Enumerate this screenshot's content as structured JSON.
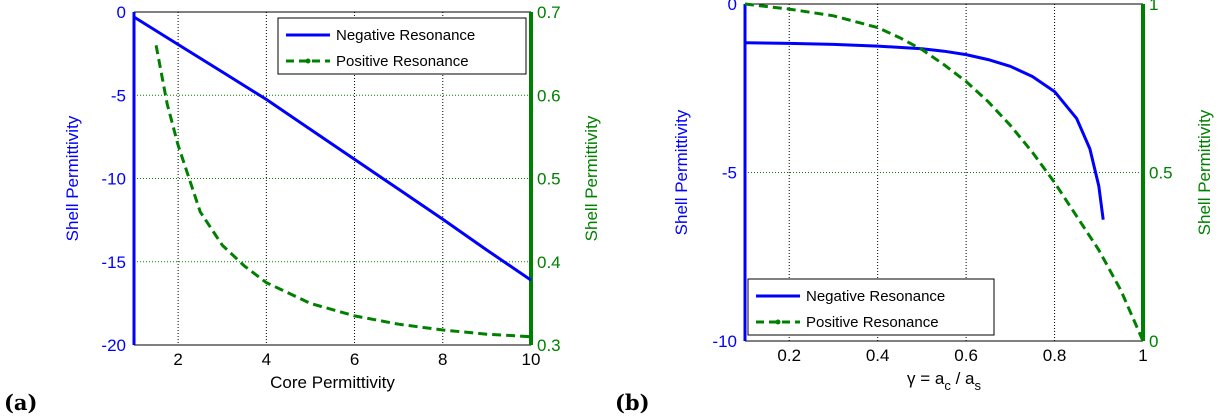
{
  "chart_data": [
    {
      "type": "line",
      "panel_label": "(a)",
      "xlabel": "Core Permittivity",
      "ylabel_left": "Shell Permittivity",
      "ylabel_right": "Shell Permittivity",
      "xlim": [
        1,
        10
      ],
      "ylim_left": [
        -20,
        0
      ],
      "ylim_right": [
        0.3,
        0.7
      ],
      "xticks": [
        2,
        4,
        6,
        8,
        10
      ],
      "yticks_left": [
        0,
        -5,
        -10,
        -15,
        -20
      ],
      "yticks_right": [
        0.7,
        0.6,
        0.5,
        0.4,
        0.3
      ],
      "grid": true,
      "legend_position": "top-right",
      "colors": {
        "left_axis": "#0000ff",
        "right_axis": "#008000",
        "grid_left": "#000000",
        "grid_right": "#008000"
      },
      "series": [
        {
          "name": "Negative Resonance",
          "axis": "left",
          "style": "solid",
          "color": "#0000ff",
          "x": [
            1,
            2,
            3,
            4,
            5,
            6,
            7,
            8,
            9,
            10
          ],
          "y": [
            -0.3,
            -1.95,
            -3.6,
            -5.25,
            -7.05,
            -8.85,
            -10.65,
            -12.45,
            -14.3,
            -16.1
          ]
        },
        {
          "name": "Positive Resonance",
          "axis": "right",
          "style": "dashed",
          "color": "#008000",
          "x": [
            1.5,
            1.75,
            2,
            2.5,
            3,
            3.5,
            4,
            5,
            6,
            7,
            8,
            9,
            10
          ],
          "y": [
            0.66,
            0.59,
            0.54,
            0.46,
            0.42,
            0.395,
            0.375,
            0.35,
            0.335,
            0.325,
            0.318,
            0.313,
            0.31
          ]
        }
      ]
    },
    {
      "type": "line",
      "panel_label": "(b)",
      "xlabel_parts": {
        "base": "γ = a",
        "sub1": "c",
        "mid": " / a",
        "sub2": "s"
      },
      "ylabel_left": "Shell Permittivity",
      "ylabel_right": "Shell Permittivity",
      "xlim": [
        0.1,
        1
      ],
      "ylim_left": [
        -10,
        0
      ],
      "ylim_right": [
        0,
        1
      ],
      "xticks": [
        0.2,
        0.4,
        0.6,
        0.8,
        1
      ],
      "yticks_left": [
        0,
        -5,
        -10
      ],
      "yticks_right": [
        1,
        0.5,
        0
      ],
      "grid": true,
      "legend_position": "bottom-left",
      "colors": {
        "left_axis": "#0000ff",
        "right_axis": "#008000",
        "grid_left": "#000000",
        "grid_right": "#008000"
      },
      "series": [
        {
          "name": "Negative Resonance",
          "axis": "left",
          "style": "solid",
          "color": "#0000ff",
          "x": [
            0.1,
            0.2,
            0.3,
            0.4,
            0.5,
            0.55,
            0.6,
            0.65,
            0.7,
            0.75,
            0.8,
            0.85,
            0.88,
            0.9,
            0.91
          ],
          "y": [
            -1.15,
            -1.17,
            -1.2,
            -1.25,
            -1.33,
            -1.4,
            -1.5,
            -1.65,
            -1.85,
            -2.15,
            -2.6,
            -3.4,
            -4.3,
            -5.4,
            -6.4
          ]
        },
        {
          "name": "Positive Resonance",
          "axis": "right",
          "style": "dashed",
          "color": "#008000",
          "x": [
            0.1,
            0.2,
            0.3,
            0.4,
            0.45,
            0.5,
            0.55,
            0.6,
            0.65,
            0.7,
            0.75,
            0.8,
            0.85,
            0.9,
            0.95,
            1.0
          ],
          "y": [
            1.0,
            0.985,
            0.965,
            0.93,
            0.9,
            0.865,
            0.82,
            0.77,
            0.71,
            0.64,
            0.56,
            0.47,
            0.37,
            0.27,
            0.15,
            0.0
          ]
        }
      ]
    }
  ]
}
